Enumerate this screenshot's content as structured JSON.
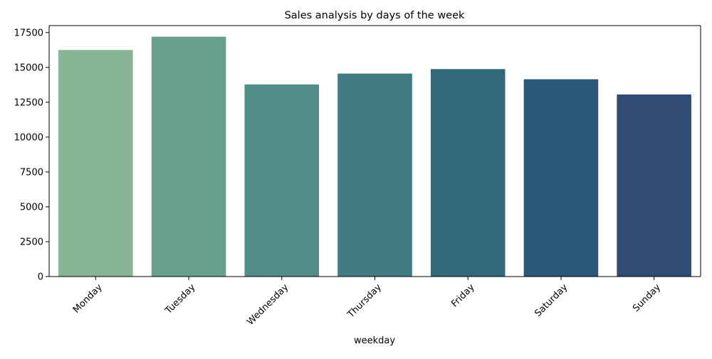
{
  "chart_data": {
    "type": "bar",
    "title": "Sales analysis by days of the week",
    "xlabel": "weekday",
    "ylabel": "",
    "categories": [
      "Monday",
      "Tuesday",
      "Wednesday",
      "Thursday",
      "Friday",
      "Saturday",
      "Sunday"
    ],
    "values": [
      16250,
      17200,
      13780,
      14560,
      14880,
      14150,
      13060
    ],
    "ylim": [
      0,
      18000
    ],
    "yticks": [
      0,
      2500,
      5000,
      7500,
      10000,
      12500,
      15000,
      17500
    ],
    "ytick_labels": [
      "0",
      "2500",
      "5000",
      "7500",
      "10000",
      "12500",
      "15000",
      "17500"
    ],
    "xtick_rotation": "45 degrees",
    "grid": false,
    "legend": "none",
    "colors": [
      "#87b594",
      "#68a08d",
      "#528e88",
      "#407b81",
      "#306a7c",
      "#2b5878",
      "#314c72"
    ]
  }
}
